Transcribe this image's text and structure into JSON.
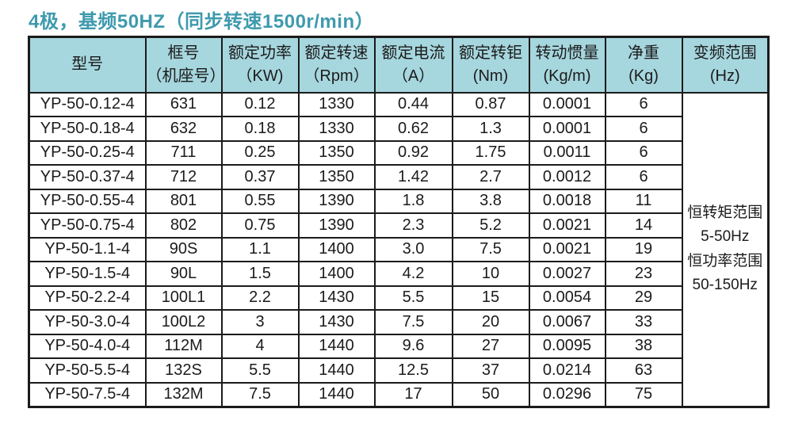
{
  "title": "4极，基频50HZ（同步转速1500r/min）",
  "colors": {
    "title_text": "#3E9AAD",
    "header_bg": "#A6D6DE",
    "border": "#1B1B1B",
    "cell_bg": "#FFFFFF"
  },
  "table": {
    "headers": [
      {
        "line1": "型号",
        "line2": ""
      },
      {
        "line1": "框号",
        "line2": "（机座号）"
      },
      {
        "line1": "额定功率",
        "line2": "（KW)"
      },
      {
        "line1": "额定转速",
        "line2": "（Rpm）"
      },
      {
        "line1": "额定电流",
        "line2": "（A）"
      },
      {
        "line1": "额定转钜",
        "line2": "(Nm)"
      },
      {
        "line1": "转动惯量",
        "line2": "(Kg/m)"
      },
      {
        "line1": "净重",
        "line2": "(Kg)"
      },
      {
        "line1": "变频范围",
        "line2": "(Hz)"
      }
    ],
    "freq_note_lines": [
      "恒转矩范围",
      "5-50Hz",
      "恒功率范围",
      "50-150Hz"
    ]
  },
  "chart_data": {
    "type": "table",
    "title": "4极，基频50HZ（同步转速1500r/min）",
    "columns": [
      "型号",
      "框号（机座号）",
      "额定功率（KW)",
      "额定转速（Rpm）",
      "额定电流（A）",
      "额定转钜(Nm)",
      "转动惯量(Kg/m)",
      "净重(Kg)",
      "变频范围(Hz)"
    ],
    "rows": [
      [
        "YP-50-0.12-4",
        "631",
        "0.12",
        "1330",
        "0.44",
        "0.87",
        "0.0001",
        "6"
      ],
      [
        "YP-50-0.18-4",
        "632",
        "0.18",
        "1330",
        "0.62",
        "1.3",
        "0.0001",
        "6"
      ],
      [
        "YP-50-0.25-4",
        "711",
        "0.25",
        "1350",
        "0.92",
        "1.75",
        "0.0011",
        "6"
      ],
      [
        "YP-50-0.37-4",
        "712",
        "0.37",
        "1350",
        "1.42",
        "2.7",
        "0.0012",
        "6"
      ],
      [
        "YP-50-0.55-4",
        "801",
        "0.55",
        "1390",
        "1.8",
        "3.8",
        "0.0018",
        "11"
      ],
      [
        "YP-50-0.75-4",
        "802",
        "0.75",
        "1390",
        "2.3",
        "5.2",
        "0.0021",
        "14"
      ],
      [
        "YP-50-1.1-4",
        "90S",
        "1.1",
        "1400",
        "3.0",
        "7.5",
        "0.0021",
        "19"
      ],
      [
        "YP-50-1.5-4",
        "90L",
        "1.5",
        "1400",
        "4.2",
        "10",
        "0.0027",
        "23"
      ],
      [
        "YP-50-2.2-4",
        "100L1",
        "2.2",
        "1430",
        "5.5",
        "15",
        "0.0054",
        "29"
      ],
      [
        "YP-50-3.0-4",
        "100L2",
        "3",
        "1430",
        "7.5",
        "20",
        "0.0067",
        "33"
      ],
      [
        "YP-50-4.0-4",
        "112M",
        "4",
        "1440",
        "9.6",
        "27",
        "0.0095",
        "38"
      ],
      [
        "YP-50-5.5-4",
        "132S",
        "5.5",
        "1440",
        "12.5",
        "37",
        "0.0214",
        "63"
      ],
      [
        "YP-50-7.5-4",
        "132M",
        "7.5",
        "1440",
        "17",
        "50",
        "0.0296",
        "75"
      ]
    ],
    "merged_last_column_note": "恒转矩范围 5-50Hz 恒功率范围 50-150Hz"
  }
}
